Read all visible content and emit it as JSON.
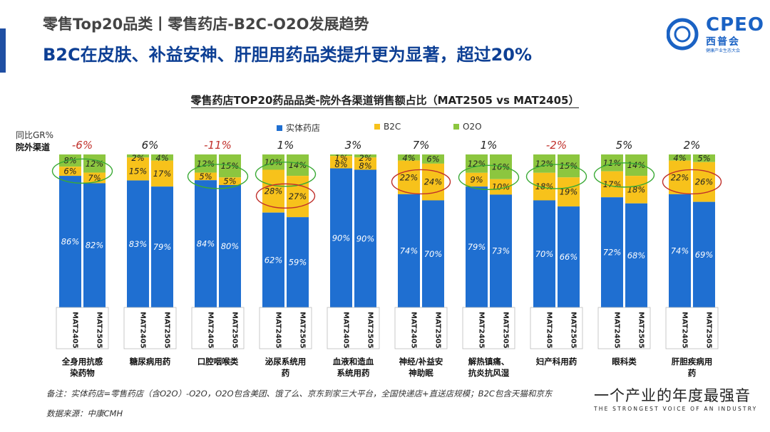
{
  "header": {
    "title": "零售Top20品类丨零售药店-B2C-O2O发展趋势",
    "subtitle": "B2C在皮肤、补益安神、肝胆用药品类提升更为显著，超过20%"
  },
  "logo": {
    "text": "CPEO",
    "cn": "西普会",
    "sub": "健康产业生态大会"
  },
  "labels": {
    "gr": "同比GR%",
    "channel": "院外渠道"
  },
  "footer": {
    "note": "备注：实体药店=零售药店（含O2O）-O2O，O2O包含美团、饿了么、京东到家三大平台，全国快递店+直送店规模；B2C包含天猫和京东",
    "source": "数据来源：中康CMH",
    "slogan": "一个产业的年度最强音",
    "slogan_en": "THE STRONGEST VOICE OF AN INDUSTRY"
  },
  "colors": {
    "store": "#1f6fd1",
    "b2c": "#f7c21b",
    "o2o": "#8cc63f",
    "gr_negative": "#c0302b",
    "gr_positive": "#222222",
    "ellipse_green": "#3aaa35",
    "ellipse_red": "#c0302b"
  },
  "chart_data": {
    "type": "bar",
    "stacked": true,
    "title": "零售药店TOP20药品品类-院外各渠道销售额占比（MAT2505 vs MAT2405）",
    "legend": [
      "实体药店",
      "B2C",
      "O2O"
    ],
    "period_labels": [
      "MAT2405",
      "MAT2505"
    ],
    "categories": [
      {
        "name": "全身用抗感染药物",
        "lines": [
          "全身用抗感",
          "染药物"
        ],
        "gr": "-6%",
        "negative": true,
        "bars": [
          {
            "store": 86,
            "b2c": 6,
            "o2o": 8
          },
          {
            "store": 82,
            "b2c": 7,
            "o2o": 12
          }
        ],
        "highlight": "green"
      },
      {
        "name": "糖尿病用药",
        "lines": [
          "糖尿病用药"
        ],
        "gr": "6%",
        "negative": false,
        "bars": [
          {
            "store": 83,
            "b2c": 15,
            "o2o": 2
          },
          {
            "store": 79,
            "b2c": 17,
            "o2o": 4
          }
        ],
        "highlight": ""
      },
      {
        "name": "口腔咽喉类",
        "lines": [
          "口腔咽喉类"
        ],
        "gr": "-11%",
        "negative": true,
        "bars": [
          {
            "store": 84,
            "b2c": 5,
            "o2o": 12
          },
          {
            "store": 80,
            "b2c": 5,
            "o2o": 15
          }
        ],
        "highlight": "green"
      },
      {
        "name": "泌尿系统用药",
        "lines": [
          "泌尿系统用",
          "药"
        ],
        "gr": "1%",
        "negative": false,
        "bars": [
          {
            "store": 62,
            "b2c": 28,
            "o2o": 10
          },
          {
            "store": 59,
            "b2c": 27,
            "o2o": 14
          }
        ],
        "highlight": "both"
      },
      {
        "name": "血液和造血系统用药",
        "lines": [
          "血液和造血",
          "系统用药"
        ],
        "gr": "3%",
        "negative": false,
        "bars": [
          {
            "store": 90,
            "b2c": 8,
            "o2o": 1
          },
          {
            "store": 90,
            "b2c": 8,
            "o2o": 2
          }
        ],
        "highlight": ""
      },
      {
        "name": "神经/补益安神助眠",
        "lines": [
          "神经/补益安",
          "神助眠"
        ],
        "gr": "7%",
        "negative": false,
        "bars": [
          {
            "store": 74,
            "b2c": 22,
            "o2o": 4
          },
          {
            "store": 70,
            "b2c": 24,
            "o2o": 6
          }
        ],
        "highlight": "red"
      },
      {
        "name": "解热镇痛、抗炎抗风湿",
        "lines": [
          "解热镇痛、",
          "抗炎抗风湿"
        ],
        "gr": "1%",
        "negative": false,
        "bars": [
          {
            "store": 79,
            "b2c": 9,
            "o2o": 12
          },
          {
            "store": 73,
            "b2c": 10,
            "o2o": 16
          }
        ],
        "highlight": "green"
      },
      {
        "name": "妇产科用药",
        "lines": [
          "妇产科用药"
        ],
        "gr": "-2%",
        "negative": true,
        "bars": [
          {
            "store": 70,
            "b2c": 18,
            "o2o": 12
          },
          {
            "store": 66,
            "b2c": 19,
            "o2o": 15
          }
        ],
        "highlight": "green"
      },
      {
        "name": "眼科类",
        "lines": [
          "眼科类"
        ],
        "gr": "5%",
        "negative": false,
        "bars": [
          {
            "store": 72,
            "b2c": 17,
            "o2o": 11
          },
          {
            "store": 68,
            "b2c": 18,
            "o2o": 14
          }
        ],
        "highlight": "green"
      },
      {
        "name": "肝胆疾病用药",
        "lines": [
          "肝胆疾病用",
          "药"
        ],
        "gr": "2%",
        "negative": false,
        "bars": [
          {
            "store": 74,
            "b2c": 22,
            "o2o": 4
          },
          {
            "store": 69,
            "b2c": 26,
            "o2o": 5
          }
        ],
        "highlight": "red"
      }
    ],
    "ylim": [
      0,
      100
    ]
  }
}
